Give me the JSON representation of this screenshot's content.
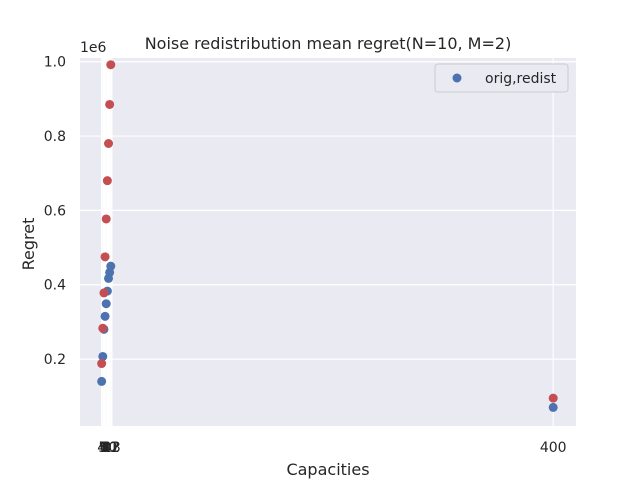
{
  "chart_data": {
    "type": "scatter",
    "title": "Noise redistribution mean regret(N=10, M=2)",
    "xlabel": "Capacities",
    "ylabel": "Regret",
    "y_offset_label": "1e6",
    "x_tick_labels": [
      "4",
      "5",
      "6",
      "7",
      "8",
      "9",
      "10",
      "11",
      "12",
      "13",
      "400"
    ],
    "x_tick_values": [
      4,
      5,
      6,
      7,
      8,
      9,
      10,
      11,
      12,
      13,
      400
    ],
    "y_tick_values": [
      0.2,
      0.4,
      0.6,
      0.8,
      1.0
    ],
    "y_tick_labels": [
      "0.2",
      "0.4",
      "0.6",
      "0.8",
      "1.0"
    ],
    "xlim": [
      -15,
      420
    ],
    "ylim": [
      20000,
      1010000
    ],
    "grid": true,
    "legend": {
      "position": "top-right",
      "label": "orig,redist"
    },
    "series": [
      {
        "color": "#4c72b0",
        "points": [
          [
            4,
            140000
          ],
          [
            5,
            207000
          ],
          [
            6,
            280000
          ],
          [
            7,
            315000
          ],
          [
            8,
            349000
          ],
          [
            9,
            383000
          ],
          [
            10,
            417000
          ],
          [
            11,
            433000
          ],
          [
            12,
            450000
          ],
          [
            400,
            70000
          ]
        ]
      },
      {
        "color": "#c44e52",
        "points": [
          [
            4,
            188000
          ],
          [
            5,
            283000
          ],
          [
            6,
            378000
          ],
          [
            7,
            475000
          ],
          [
            8,
            577000
          ],
          [
            9,
            680000
          ],
          [
            10,
            780000
          ],
          [
            11,
            885000
          ],
          [
            12,
            992000
          ],
          [
            400,
            95000
          ]
        ]
      }
    ]
  }
}
